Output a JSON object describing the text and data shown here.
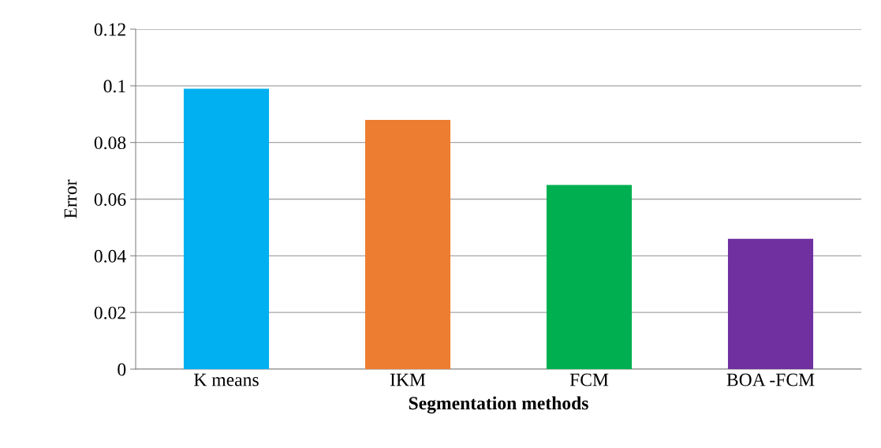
{
  "chart_data": {
    "type": "bar",
    "xlabel": "Segmentation methods",
    "ylabel": "Error",
    "categories": [
      "K means",
      "IKM",
      "FCM",
      "BOA -FCM"
    ],
    "values": [
      0.099,
      0.088,
      0.065,
      0.046
    ],
    "colors": [
      "#00b0f0",
      "#ed7d31",
      "#00b050",
      "#7030a0"
    ],
    "ylim": [
      0,
      0.12
    ],
    "yticks": [
      0,
      0.02,
      0.04,
      0.06,
      0.08,
      0.1,
      0.12
    ],
    "grid": "y"
  }
}
